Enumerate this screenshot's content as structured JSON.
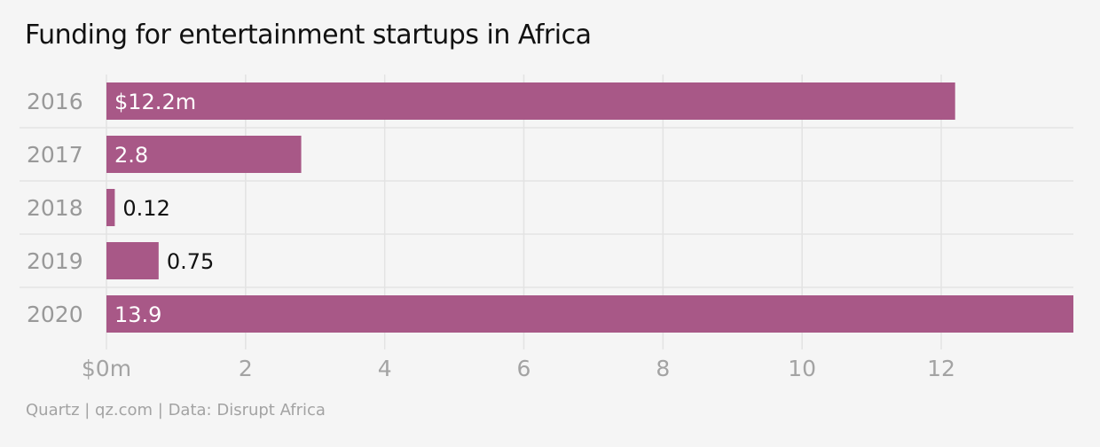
{
  "chart_data": {
    "type": "bar",
    "orientation": "horizontal",
    "title": "Funding for entertainment startups in Africa",
    "categories": [
      "2016",
      "2017",
      "2018",
      "2019",
      "2020"
    ],
    "values": [
      12.2,
      2.8,
      0.12,
      0.75,
      13.9
    ],
    "data_labels": [
      "$12.2m",
      "2.8",
      "0.12",
      "0.75",
      "13.9"
    ],
    "x_ticks": [
      0,
      2,
      4,
      6,
      8,
      10,
      12
    ],
    "x_tick_labels": [
      "$0m",
      "2",
      "4",
      "6",
      "8",
      "10",
      "12"
    ],
    "xlim": [
      0,
      13.9
    ],
    "xlabel": "",
    "ylabel": "",
    "grid": true,
    "legend": "none",
    "colors": {
      "bar": "#a85887",
      "label_inside": "#ffffff",
      "label_outside": "#111111",
      "category_label": "#999999",
      "tick_label": "#a3a3a3",
      "grid": "#e3e3e3",
      "background": "#f5f5f5"
    }
  },
  "footer": {
    "source": "Quartz | qz.com | Data: Disrupt Africa"
  }
}
